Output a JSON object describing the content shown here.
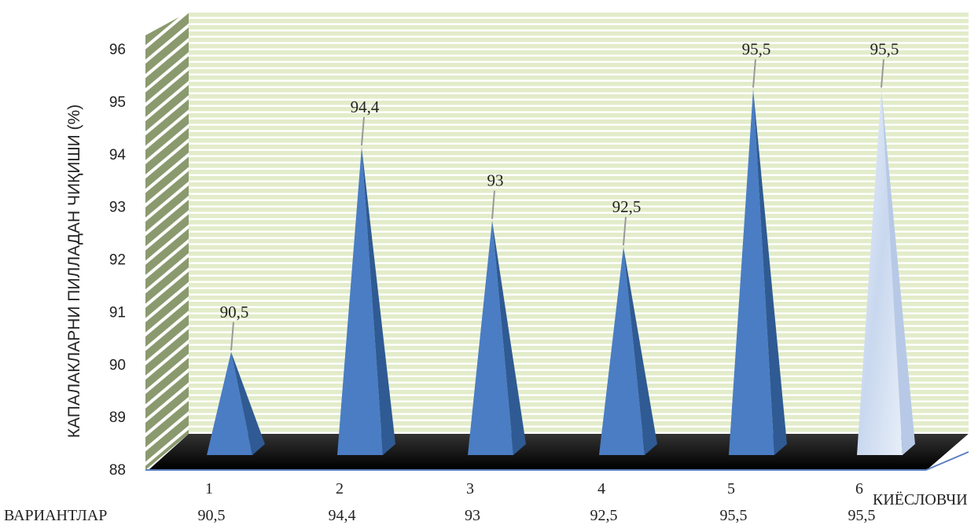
{
  "chart_data": {
    "type": "bar",
    "subtype": "3d-pyramid",
    "ylabel": "КАПАЛАКЛАРНИ ПИЛЛАДАН ЧИҚИШИ  (%)",
    "ylim": [
      88,
      96
    ],
    "yticks": [
      "88",
      "89",
      "90",
      "91",
      "92",
      "93",
      "94",
      "95",
      "96"
    ],
    "categories": [
      "1",
      "2",
      "3",
      "4",
      "5",
      "6"
    ],
    "values": [
      90.5,
      94.4,
      93,
      92.5,
      95.5,
      95.5
    ],
    "data_labels": [
      "90,5",
      "94,4",
      "93",
      "92,5",
      "95,5",
      "95,5"
    ],
    "series_name": "КИЁСЛОВЧИ",
    "table_row_label": "ВАРИАНТЛАР",
    "table_values": [
      "90,5",
      "94,4",
      "93",
      "92,5",
      "95,5",
      "95,5"
    ],
    "colors": {
      "bar": "#4a7dc4",
      "bar_dark": "#2f5a93",
      "last_bar": "#d6e2f3",
      "wall": "#e2ecca",
      "wall_lines": "#ffffff",
      "side_wall": "#8b9a6e",
      "floor": "#111111",
      "axis_line": "#5b7fbf"
    },
    "grid": true
  }
}
